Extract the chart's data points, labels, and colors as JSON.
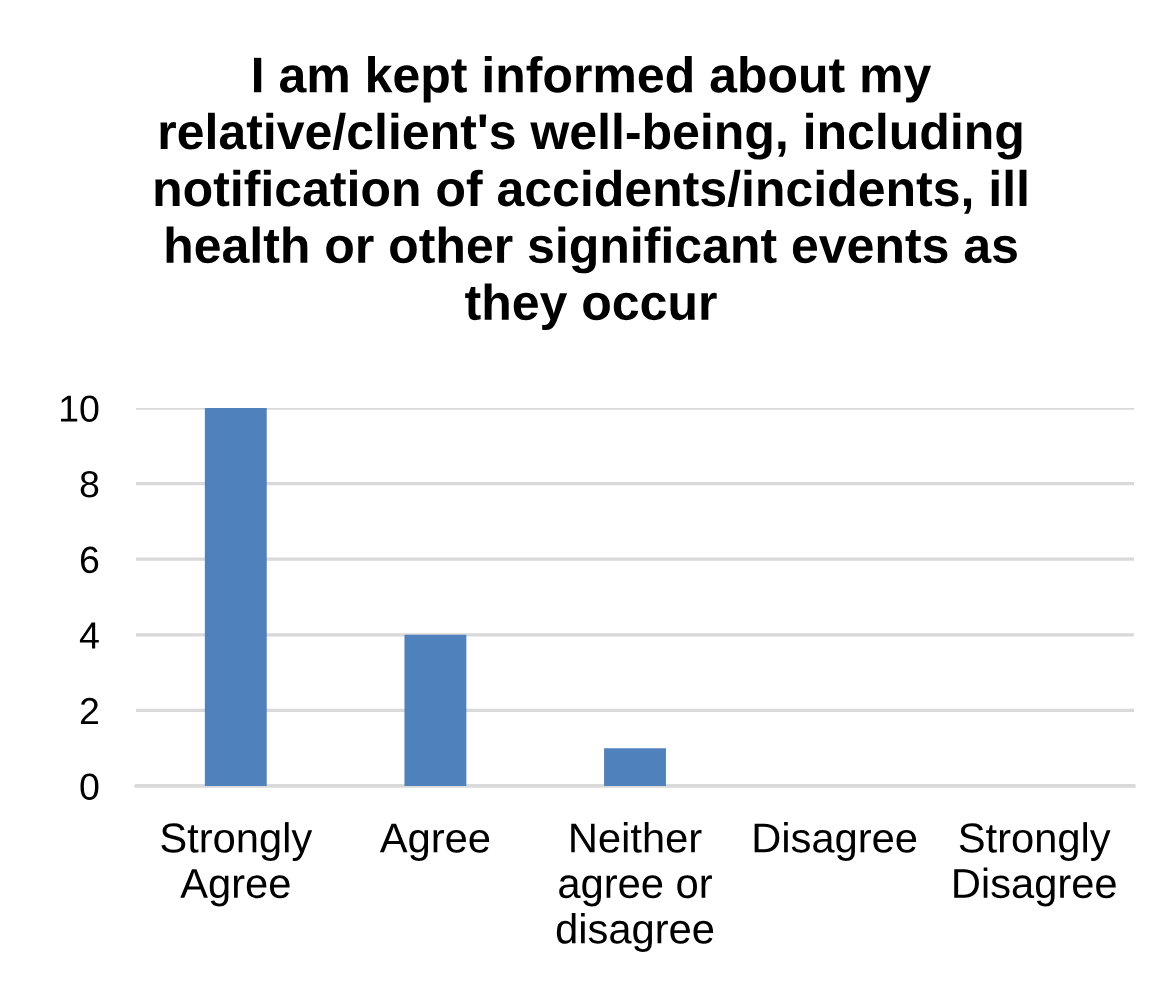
{
  "chart_data": {
    "type": "bar",
    "title": "I am kept informed about my\nrelative/client's well-being, including\nnotification of accidents/incidents, ill\nhealth or other significant events as\nthey occur",
    "categories": [
      "Strongly\nAgree",
      "Agree",
      "Neither\nagree or\ndisagree",
      "Disagree",
      "Strongly\nDisagree"
    ],
    "values": [
      10,
      4,
      1,
      0,
      0
    ],
    "color": "#4f81bd",
    "ylim": [
      0,
      10
    ],
    "yticks": [
      0,
      2,
      4,
      6,
      8,
      10
    ],
    "grid": "y"
  }
}
